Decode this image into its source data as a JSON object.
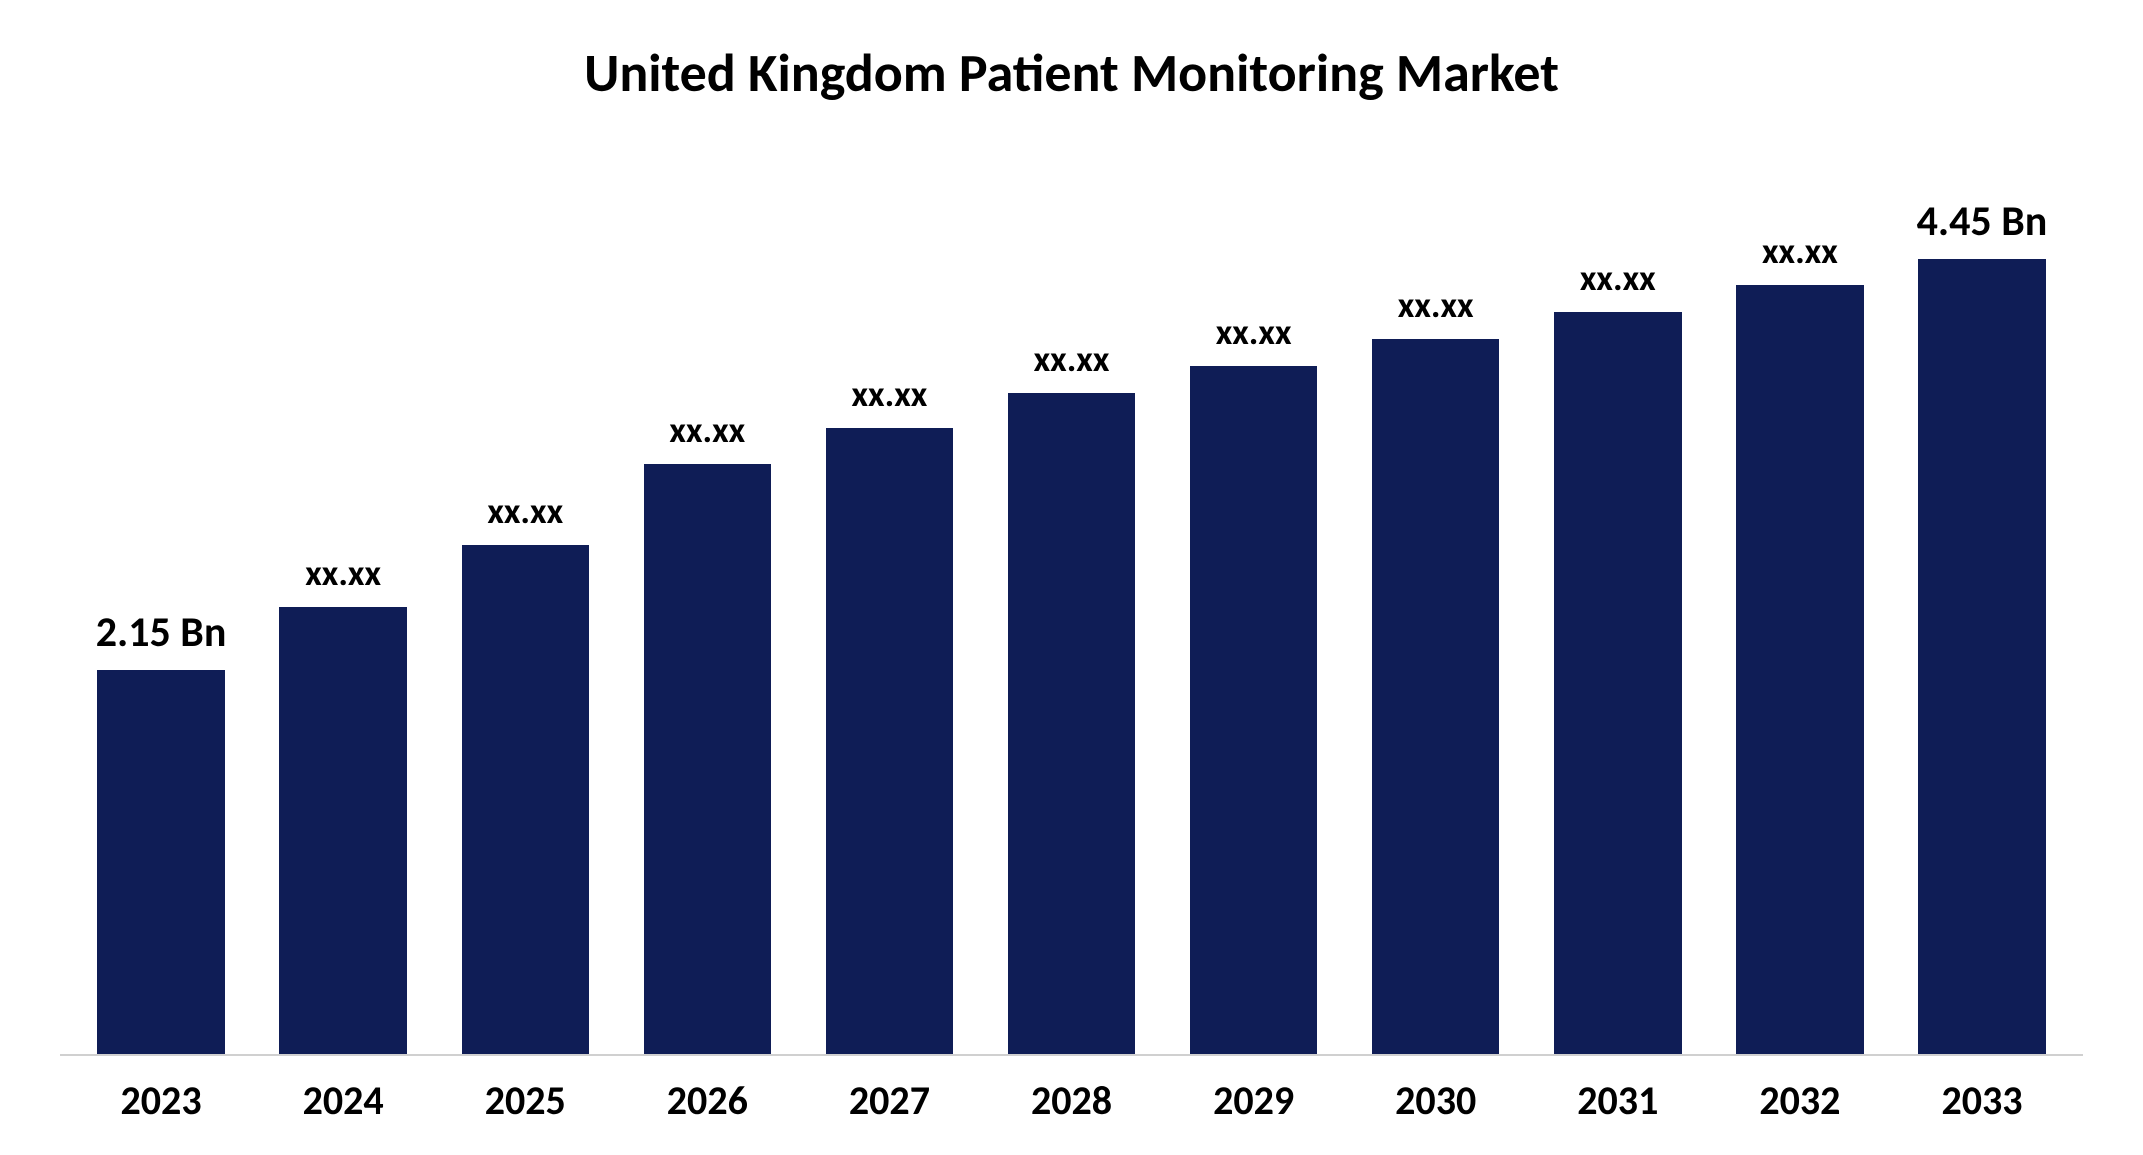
{
  "chart": {
    "type": "bar",
    "title": "United Kingdom Patient Monitoring Market",
    "title_fontsize": 54,
    "title_color": "#000000",
    "background_color": "#ffffff",
    "axis_line_color": "#d0d0d0",
    "bar_color": "#0f1d56",
    "bar_width": 0.7,
    "ylim": [
      0,
      4.8
    ],
    "x_label_fontsize": 40,
    "x_label_fontweight": 700,
    "data_label_fontsize": 36,
    "endpoint_label_fontsize": 42,
    "categories": [
      "2023",
      "2024",
      "2025",
      "2026",
      "2027",
      "2028",
      "2029",
      "2030",
      "2031",
      "2032",
      "2033"
    ],
    "values": [
      2.15,
      2.5,
      2.85,
      3.3,
      3.5,
      3.7,
      3.85,
      4.0,
      4.15,
      4.3,
      4.45
    ],
    "labels": [
      "2.15 Bn",
      "xx.xx",
      "xx.xx",
      "xx.xx",
      "xx.xx",
      "xx.xx",
      "xx.xx",
      "xx.xx",
      "xx.xx",
      "xx.xx",
      "4.45 Bn"
    ],
    "endpoint_indices": [
      0,
      10
    ]
  }
}
